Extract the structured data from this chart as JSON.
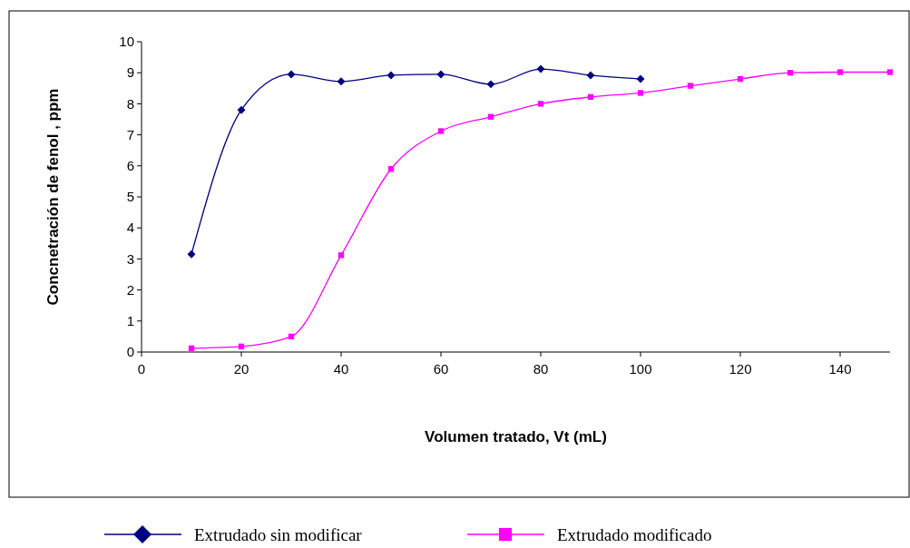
{
  "chart_data": {
    "type": "line",
    "xlabel": "Volumen tratado, Vt (mL)",
    "ylabel": "Concnetración de fenol , ppm",
    "xlim": [
      0,
      150
    ],
    "xticks": [
      0,
      20,
      40,
      60,
      80,
      100,
      120,
      140
    ],
    "ylim": [
      0,
      10
    ],
    "yticks": [
      0,
      1,
      2,
      3,
      4,
      5,
      6,
      7,
      8,
      9,
      10
    ],
    "grid": false,
    "legend": "bottom",
    "series": [
      {
        "name": "Extrudado sin modificar",
        "color": "#000080",
        "marker": "diamond",
        "x": [
          10,
          20,
          30,
          40,
          50,
          60,
          70,
          80,
          90,
          100
        ],
        "values": [
          3.15,
          7.8,
          8.95,
          8.72,
          8.92,
          8.95,
          8.63,
          9.12,
          8.92,
          8.8
        ]
      },
      {
        "name": "Extrudado modificado",
        "color": "#ff00ff",
        "marker": "square",
        "x": [
          10,
          20,
          30,
          40,
          50,
          60,
          70,
          80,
          90,
          100,
          110,
          120,
          130,
          140,
          150
        ],
        "values": [
          0.12,
          0.18,
          0.5,
          3.12,
          5.9,
          7.12,
          7.58,
          8.0,
          8.22,
          8.35,
          8.58,
          8.8,
          9.0,
          9.02,
          9.02
        ]
      }
    ]
  }
}
